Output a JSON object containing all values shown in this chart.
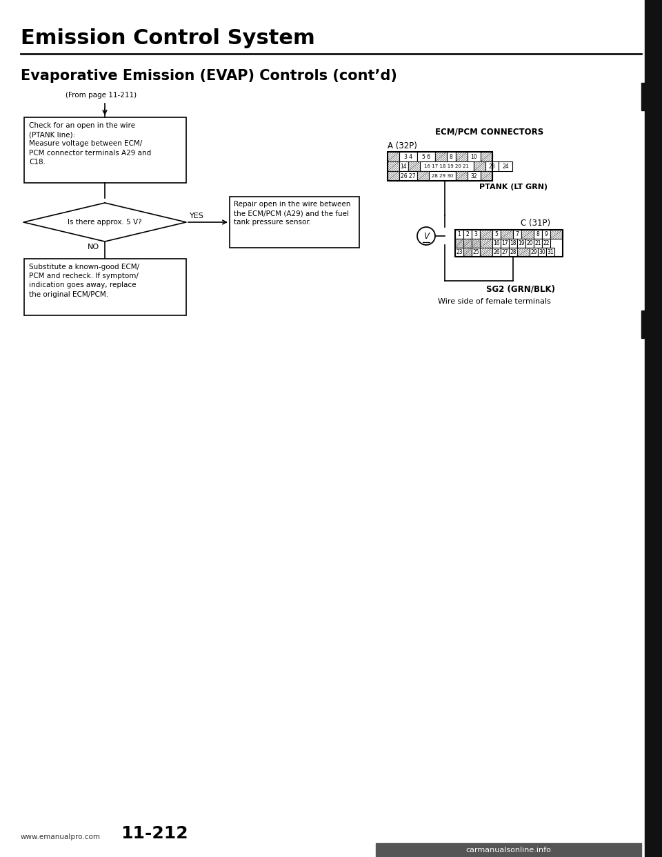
{
  "title": "Emission Control System",
  "subtitle": "Evaporative Emission (EVAP) Controls (cont’d)",
  "page_ref": "(From page 11-211)",
  "box1_text": "Check for an open in the wire\n(PTANK line):\nMeasure voltage between ECM/\nPCM connector terminals A29 and\nC18.",
  "diamond_text": "Is there approx. 5 V?",
  "yes_label": "YES",
  "no_label": "NO",
  "repair_box_text": "Repair open in the wire between\nthe ECM/PCM (A29) and the fuel\ntank pressure sensor.",
  "box3_text": "Substitute a known-good ECM/\nPCM and recheck. If symptom/\nindication goes away, replace\nthe original ECM/PCM.",
  "ecm_title": "ECM/PCM CONNECTORS",
  "connector_a_label": "A (32P)",
  "ptank_label": "PTANK (LT GRN)",
  "connector_c_label": "C (31P)",
  "sg2_label": "SG2 (GRN/BLK)",
  "wire_label": "Wire side of female terminals",
  "page_num": "11-212",
  "watermark": "www.emanualpro.com",
  "bottom_watermark": "carmanualsonline.info",
  "bg_color": "#ffffff",
  "text_color": "#000000",
  "title_fontsize": 22,
  "subtitle_fontsize": 15,
  "body_fontsize": 8.5,
  "small_fontsize": 7.5
}
